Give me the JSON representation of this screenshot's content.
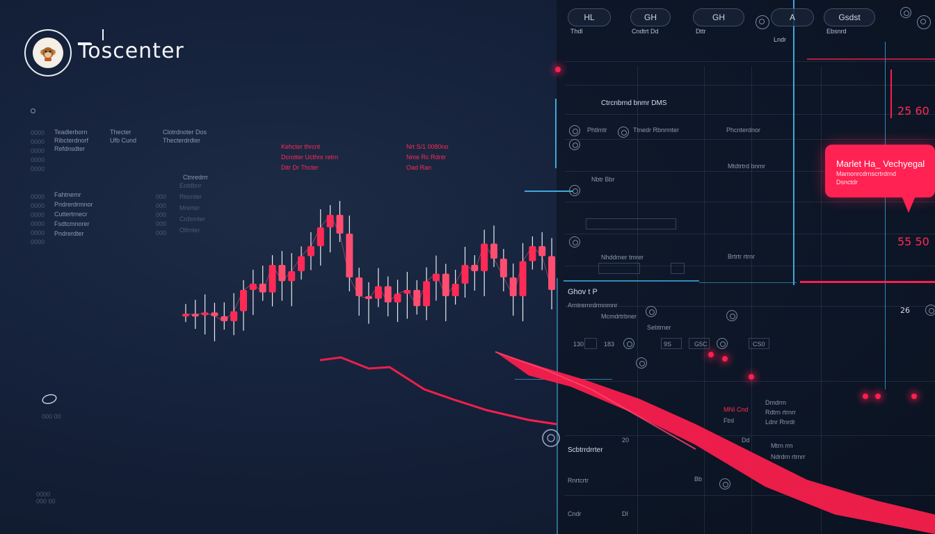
{
  "brand": {
    "name": "Toscenter"
  },
  "left_info": {
    "col1": [
      "Teadlerborn",
      "Ribcterdnorf",
      "Refdnsdter"
    ],
    "col2": [
      "Thecter",
      "Ufb Cund"
    ],
    "col3": [
      "Clotrdnoter Dos",
      "Thecterdrdter"
    ],
    "rows": [
      "Fahtnemr",
      "Pndrerdrmnor",
      "Cuttertrnecr",
      "Fsdtcmnorer",
      "Pndrerdter"
    ],
    "side": [
      "Ctnredrrr"
    ]
  },
  "chart_annotations": [
    {
      "line1": "Kehcter thrcnt",
      "line2": "Dcrotter Ucthnr retrn",
      "line3": "Ditr Dr Thcter"
    },
    {
      "line1": "Nrt S/1 0080no",
      "line2": "Nme Rc Rdntr",
      "line3": "Oad Ran"
    }
  ],
  "chart_labels": [
    "Eotdbnr",
    "Rtemter",
    "Mrerter",
    "Crdsmter",
    "Oltmter"
  ],
  "chart_data": {
    "type": "candlestick",
    "values": [
      0.16,
      0.15,
      0.17,
      0.14,
      0.1,
      0.18,
      0.35,
      0.4,
      0.33,
      0.55,
      0.42,
      0.5,
      0.62,
      0.7,
      0.85,
      0.95,
      0.8,
      0.45,
      0.3,
      0.28,
      0.38,
      0.25,
      0.32,
      0.35,
      0.22,
      0.42,
      0.48,
      0.3,
      0.4,
      0.55,
      0.5,
      0.72,
      0.6,
      0.45,
      0.3,
      0.58,
      0.7,
      0.62,
      0.35
    ]
  },
  "top_pills": [
    {
      "value": "HL",
      "label": "Thdl"
    },
    {
      "value": "GH",
      "label": "Cndtrt Dd"
    },
    {
      "value": "GH",
      "label": "Dttr"
    },
    {
      "value": "A",
      "label": "Lndr"
    },
    {
      "value": "Gsdst",
      "label": "Ebsnrd"
    }
  ],
  "panel_rows": [
    "Ctrcnbrnd bnmr DMS",
    "Phtlmtr",
    "Ttnedr Rbnrmter",
    "Phcnterdnor",
    "Mtdtrtrd bnmr",
    "Nbtr Bbr",
    "Nhddrner tmrer",
    "Brtrtr rtrnr"
  ],
  "bubble": {
    "title": "Marlet Ha_ Vechyegal",
    "line1": "Mamonrcdrnscrtrdrnd",
    "line2": "Dsnctdr"
  },
  "prices": [
    "25 60",
    "55 50",
    "26"
  ],
  "panel_lower": [
    "Ghov t P",
    "Arntrernrdrmnmnr",
    "Mcmdrtrbner",
    "Scbtrrdrrter",
    "Rnrtcrtr",
    "Cndr",
    "Sebtrner"
  ],
  "lower_vals": [
    "130",
    "183",
    "20",
    "G5C",
    "9S",
    "CS0",
    "Dd",
    "Bb",
    "DI"
  ],
  "lower_right": [
    "Dmdrrn",
    "Rdtrn rtrnrr",
    "Ldnr Rnrdr",
    "MNI Cnd",
    "Ftnl",
    "Mtrn rrn",
    "Ndrdrn rtrnrr"
  ],
  "colors": {
    "accent_red": "#ff1e4d",
    "accent_cyan": "#3fa8dc",
    "bg": "#15213a"
  }
}
